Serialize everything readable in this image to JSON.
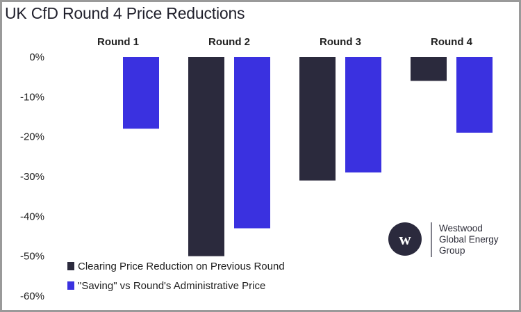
{
  "title": "UK CfD Round 4 Price Reductions",
  "chart_data": {
    "type": "bar",
    "categories": [
      "Round 1",
      "Round 2",
      "Round 3",
      "Round 4"
    ],
    "series": [
      {
        "name": "Clearing Price Reduction on Previous Round",
        "color": "#2b2a3d",
        "values": [
          null,
          -50,
          -31,
          -6
        ]
      },
      {
        "name": "\"Saving\" vs Round's Administrative Price",
        "color": "#3a31e0",
        "values": [
          -18,
          -43,
          -29,
          -19
        ]
      }
    ],
    "ylim": [
      -60,
      0
    ],
    "yticks": [
      "0%",
      "-10%",
      "-20%",
      "-30%",
      "-40%",
      "-50%",
      "-60%"
    ],
    "ytick_values": [
      0,
      -10,
      -20,
      -30,
      -40,
      -50,
      -60
    ],
    "legend_placement": "bottom-left",
    "category_labels_position": "top",
    "grid": false
  },
  "logo": {
    "icon": "westwood-w-circle-icon",
    "lines": [
      "Westwood",
      "Global Energy",
      "Group"
    ]
  }
}
